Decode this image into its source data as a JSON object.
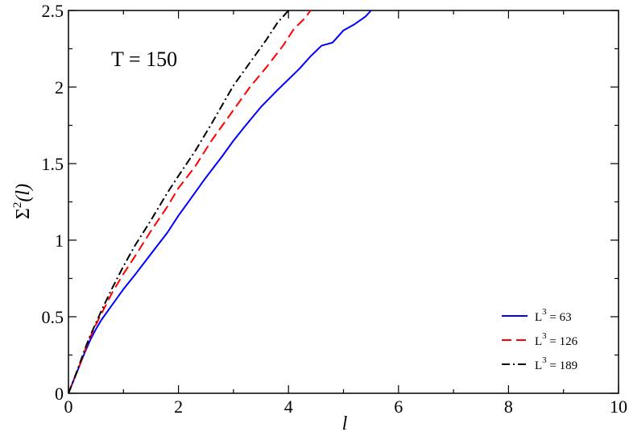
{
  "chart_data": {
    "type": "line",
    "title": "",
    "annotation": "T = 150",
    "xlabel": "l",
    "ylabel": "Σ²(l)",
    "ylabel_parts": {
      "base": "Σ",
      "sup": "2",
      "arg": "(l)"
    },
    "xlim": [
      0,
      10
    ],
    "ylim": [
      0,
      2.5
    ],
    "x_ticks": [
      0,
      2,
      4,
      6,
      8,
      10
    ],
    "x_tick_labels": [
      "0",
      "2",
      "4",
      "6",
      "8",
      "10"
    ],
    "y_ticks": [
      0,
      0.5,
      1,
      1.5,
      2,
      2.5
    ],
    "y_tick_labels": [
      "0",
      "0.5",
      "1",
      "1.5",
      "2",
      "2.5"
    ],
    "grid": false,
    "legend_position": "bottom-right",
    "series": [
      {
        "name": "L³ = 63",
        "name_parts": {
          "base": "L",
          "sup": "3",
          "rest": " = 63"
        },
        "color": "#0000ff",
        "style": "solid",
        "x": [
          0,
          0.1,
          0.2,
          0.3,
          0.4,
          0.5,
          0.6,
          0.8,
          1.0,
          1.2,
          1.5,
          1.8,
          2.0,
          2.2,
          2.5,
          2.8,
          3.0,
          3.2,
          3.5,
          3.8,
          4.0,
          4.2,
          4.4,
          4.6,
          4.7,
          4.8,
          4.9,
          5.0,
          5.2,
          5.4,
          5.5
        ],
        "y": [
          0,
          0.09,
          0.18,
          0.27,
          0.35,
          0.42,
          0.48,
          0.58,
          0.68,
          0.77,
          0.91,
          1.05,
          1.16,
          1.26,
          1.41,
          1.55,
          1.65,
          1.74,
          1.87,
          1.98,
          2.05,
          2.12,
          2.2,
          2.27,
          2.28,
          2.29,
          2.33,
          2.37,
          2.41,
          2.46,
          2.5
        ]
      },
      {
        "name": "L³ = 126",
        "name_parts": {
          "base": "L",
          "sup": "3",
          "rest": " = 126"
        },
        "color": "#ff0000",
        "style": "dashed",
        "x": [
          0,
          0.1,
          0.2,
          0.3,
          0.4,
          0.5,
          0.6,
          0.8,
          1.0,
          1.2,
          1.5,
          1.8,
          2.0,
          2.3,
          2.6,
          3.0,
          3.3,
          3.6,
          3.9,
          4.1,
          4.3,
          4.4
        ],
        "y": [
          0,
          0.09,
          0.18,
          0.28,
          0.37,
          0.45,
          0.52,
          0.66,
          0.78,
          0.89,
          1.06,
          1.22,
          1.34,
          1.48,
          1.65,
          1.85,
          2.0,
          2.13,
          2.27,
          2.38,
          2.45,
          2.5
        ]
      },
      {
        "name": "L³ = 189",
        "name_parts": {
          "base": "L",
          "sup": "3",
          "rest": " = 189"
        },
        "color": "#000000",
        "style": "dashdot",
        "x": [
          0,
          0.1,
          0.2,
          0.3,
          0.4,
          0.5,
          0.6,
          0.8,
          1.0,
          1.2,
          1.5,
          1.8,
          2.0,
          2.3,
          2.6,
          3.0,
          3.3,
          3.6,
          3.8,
          4.0
        ],
        "y": [
          0,
          0.09,
          0.19,
          0.29,
          0.38,
          0.46,
          0.54,
          0.69,
          0.83,
          0.96,
          1.13,
          1.31,
          1.42,
          1.58,
          1.76,
          2.01,
          2.16,
          2.31,
          2.42,
          2.5
        ]
      }
    ]
  }
}
